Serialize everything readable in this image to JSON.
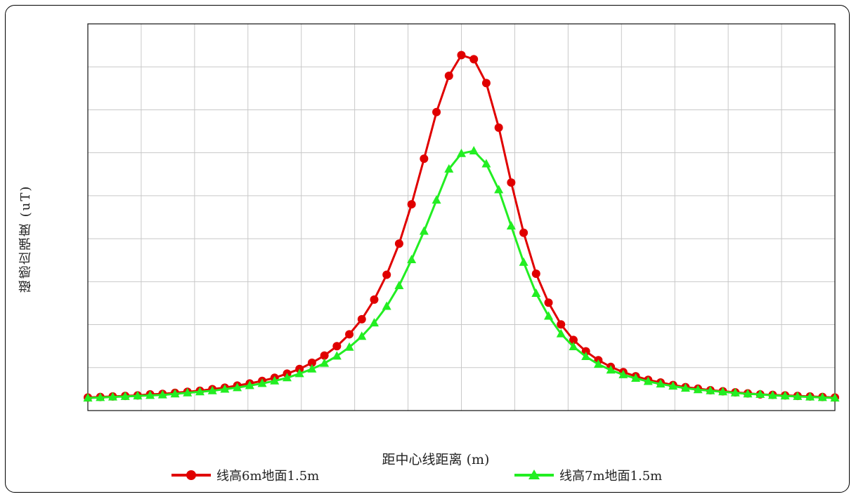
{
  "chart_data": {
    "type": "line",
    "title": "",
    "xlabel": "距中心线距离 (m)",
    "ylabel": "磁感应强度 (uT)",
    "grid": true,
    "legend_position": "bottom",
    "x": [
      -30,
      -29,
      -28,
      -27,
      -26,
      -25,
      -24,
      -23,
      -22,
      -21,
      -20,
      -19,
      -18,
      -17,
      -16,
      -15,
      -14,
      -13,
      -12,
      -11,
      -10,
      -9,
      -8,
      -7,
      -6,
      -5,
      -4,
      -3,
      -2,
      -1,
      0,
      1,
      2,
      3,
      4,
      5,
      6,
      7,
      8,
      9,
      10,
      11,
      12,
      13,
      14,
      15,
      16,
      17,
      18,
      19,
      20,
      21,
      22,
      23,
      24,
      25,
      26,
      27,
      28,
      29,
      30
    ],
    "series": [
      {
        "name": "线高6m地面1.5m",
        "color": "#e00000",
        "marker": "circle",
        "values": [
          0.09,
          0.1,
          0.11,
          0.12,
          0.13,
          0.15,
          0.16,
          0.18,
          0.2,
          0.22,
          0.25,
          0.28,
          0.32,
          0.36,
          0.41,
          0.47,
          0.55,
          0.64,
          0.76,
          0.9,
          1.08,
          1.31,
          1.6,
          1.98,
          2.46,
          3.06,
          3.82,
          4.7,
          5.6,
          6.3,
          6.7,
          6.62,
          6.16,
          5.3,
          4.24,
          3.27,
          2.48,
          1.92,
          1.5,
          1.2,
          0.98,
          0.81,
          0.68,
          0.58,
          0.5,
          0.43,
          0.38,
          0.33,
          0.29,
          0.26,
          0.23,
          0.21,
          0.19,
          0.17,
          0.15,
          0.14,
          0.13,
          0.12,
          0.11,
          0.1,
          0.09
        ]
      },
      {
        "name": "线高7m地面1.5m",
        "color": "#22ee22",
        "marker": "triangle",
        "values": [
          0.08,
          0.09,
          0.1,
          0.11,
          0.12,
          0.13,
          0.14,
          0.16,
          0.18,
          0.2,
          0.22,
          0.25,
          0.28,
          0.32,
          0.36,
          0.41,
          0.47,
          0.55,
          0.64,
          0.75,
          0.89,
          1.06,
          1.27,
          1.53,
          1.85,
          2.25,
          2.75,
          3.3,
          3.9,
          4.5,
          4.8,
          4.85,
          4.6,
          4.1,
          3.4,
          2.7,
          2.1,
          1.66,
          1.32,
          1.07,
          0.88,
          0.73,
          0.62,
          0.53,
          0.46,
          0.4,
          0.35,
          0.31,
          0.27,
          0.24,
          0.22,
          0.2,
          0.18,
          0.16,
          0.15,
          0.13,
          0.12,
          0.11,
          0.1,
          0.09,
          0.08
        ]
      }
    ]
  }
}
